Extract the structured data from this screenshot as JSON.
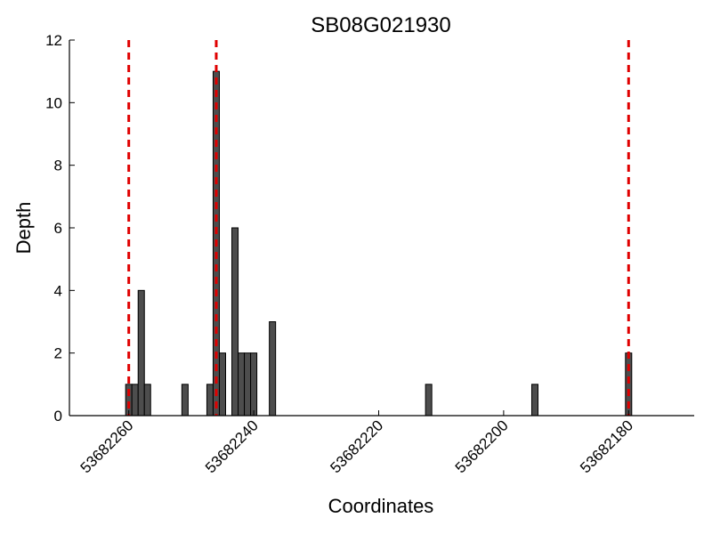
{
  "chart_data": {
    "type": "bar",
    "title": "SB08G021930",
    "xlabel": "Coordinates",
    "ylabel": "Depth",
    "xlim": [
      53682269.5,
      53682169.5
    ],
    "ylim": [
      0,
      12
    ],
    "x_ticks": [
      53682260,
      53682240,
      53682220,
      53682200,
      53682180
    ],
    "x_tick_labels": [
      "53682260",
      "53682240",
      "53682220",
      "53682200",
      "53682180"
    ],
    "y_ticks": [
      0,
      2,
      4,
      6,
      8,
      10,
      12
    ],
    "y_tick_labels": [
      "0",
      "2",
      "4",
      "6",
      "8",
      "10",
      "12"
    ],
    "bar_width": 1,
    "bars": [
      {
        "x": 53682260,
        "y": 1
      },
      {
        "x": 53682259,
        "y": 1
      },
      {
        "x": 53682258,
        "y": 4
      },
      {
        "x": 53682257,
        "y": 1
      },
      {
        "x": 53682251,
        "y": 1
      },
      {
        "x": 53682247,
        "y": 1
      },
      {
        "x": 53682246,
        "y": 11
      },
      {
        "x": 53682245,
        "y": 2
      },
      {
        "x": 53682243,
        "y": 6
      },
      {
        "x": 53682242,
        "y": 2
      },
      {
        "x": 53682241,
        "y": 2
      },
      {
        "x": 53682240,
        "y": 2
      },
      {
        "x": 53682237,
        "y": 3
      },
      {
        "x": 53682212,
        "y": 1
      },
      {
        "x": 53682195,
        "y": 1
      },
      {
        "x": 53682180,
        "y": 2
      }
    ],
    "vlines": [
      53682260,
      53682246,
      53682180
    ],
    "bar_color": "#4d4d4d",
    "bar_edge_color": "#000000",
    "vline_color": "#e00000",
    "grid": false
  }
}
